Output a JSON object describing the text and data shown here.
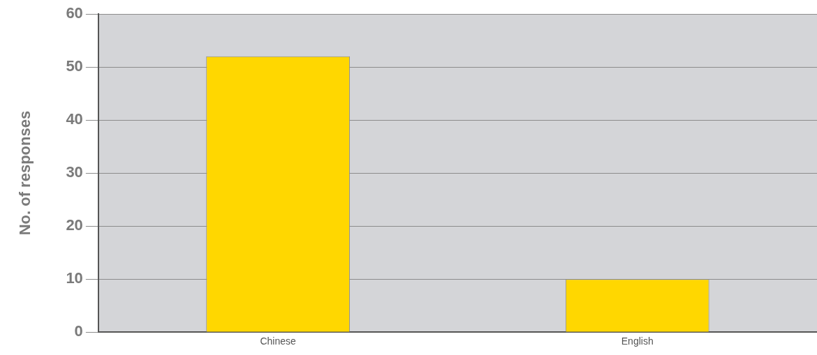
{
  "chart_data": {
    "type": "bar",
    "ylabel": "No. of responses",
    "categories": [
      "Chinese",
      "English"
    ],
    "values": [
      52,
      10
    ],
    "color": "#ffd700",
    "ylim": [
      0,
      60
    ],
    "yticks": [
      0,
      10,
      20,
      30,
      40,
      50,
      60
    ],
    "grid": "y",
    "legend": false
  }
}
